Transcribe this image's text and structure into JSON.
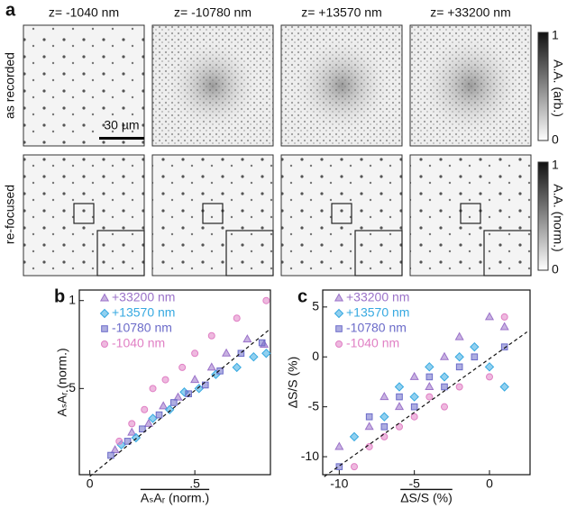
{
  "panel_a": {
    "label": "a",
    "columns": [
      "z= -1040 nm",
      "z= -10780 nm",
      "z= +13570 nm",
      "z= +33200 nm"
    ],
    "rows": [
      "as recorded",
      "re-focused"
    ],
    "scale_bar": "30 µm",
    "colorbars": [
      {
        "max": "1",
        "min": "0",
        "label": "A.A. (arb.)"
      },
      {
        "max": "1",
        "min": "0",
        "label": "A.A. (norm.)"
      }
    ]
  },
  "chart_data": [
    {
      "type": "scatter",
      "label": "b",
      "ylabel": "AₛAᵣ (norm.)",
      "xlabel": "AₛAᵣ (norm.)",
      "xlim": [
        -0.05,
        0.86
      ],
      "ylim": [
        0.01,
        1.06
      ],
      "xticks": [
        0,
        {
          "value": 0.5,
          "label": ".5"
        }
      ],
      "yticks": [
        {
          "value": 0.5,
          "label": ".5"
        },
        1
      ],
      "fit_line": {
        "x": [
          0,
          0.86
        ],
        "y": [
          0,
          0.84
        ]
      },
      "series": [
        {
          "name": "+33200 nm",
          "color": "#9b72c9",
          "marker": "triangle",
          "x": [
            0.12,
            0.2,
            0.28,
            0.35,
            0.42,
            0.5,
            0.58,
            0.65,
            0.75,
            0.83
          ],
          "values": [
            0.15,
            0.25,
            0.3,
            0.4,
            0.45,
            0.55,
            0.62,
            0.7,
            0.78,
            0.75
          ]
        },
        {
          "name": "+13570 nm",
          "color": "#36a9e1",
          "marker": "diamond",
          "x": [
            0.15,
            0.22,
            0.3,
            0.38,
            0.45,
            0.52,
            0.6,
            0.7,
            0.78,
            0.84
          ],
          "values": [
            0.18,
            0.22,
            0.33,
            0.38,
            0.48,
            0.5,
            0.58,
            0.62,
            0.68,
            0.7
          ]
        },
        {
          "name": "-10780 nm",
          "color": "#6b6bc9",
          "marker": "square",
          "x": [
            0.1,
            0.18,
            0.25,
            0.33,
            0.4,
            0.47,
            0.55,
            0.62,
            0.72,
            0.82
          ],
          "values": [
            0.12,
            0.2,
            0.27,
            0.35,
            0.42,
            0.47,
            0.52,
            0.6,
            0.7,
            0.76
          ]
        },
        {
          "name": "-1040 nm",
          "color": "#e07fc4",
          "marker": "circle",
          "x": [
            0.14,
            0.2,
            0.26,
            0.3,
            0.36,
            0.44,
            0.5,
            0.58,
            0.7,
            0.84
          ],
          "values": [
            0.2,
            0.3,
            0.38,
            0.5,
            0.55,
            0.62,
            0.7,
            0.8,
            0.9,
            1.0
          ]
        }
      ]
    },
    {
      "type": "scatter",
      "label": "c",
      "ylabel": "ΔS/S (%)",
      "xlabel": "ΔS/S (%)",
      "xlim": [
        -11.1,
        2.7
      ],
      "ylim": [
        -11.8,
        6.7
      ],
      "xticks": [
        -10,
        -5,
        0
      ],
      "yticks": [
        -10,
        -5,
        0,
        5
      ],
      "fit_line": {
        "x": [
          -11,
          2.5
        ],
        "y": [
          -12,
          2.5
        ]
      },
      "series": [
        {
          "name": "+33200 nm",
          "color": "#9b72c9",
          "marker": "triangle",
          "x": [
            -10,
            -8,
            -7,
            -6,
            -5,
            -4,
            -3,
            -2,
            0,
            1
          ],
          "values": [
            -9,
            -7,
            -4,
            -5,
            -2,
            -3,
            0,
            2,
            4,
            3
          ]
        },
        {
          "name": "+13570 nm",
          "color": "#36a9e1",
          "marker": "diamond",
          "x": [
            -9,
            -7,
            -6,
            -5,
            -4,
            -3,
            -2,
            -1,
            0,
            1
          ],
          "values": [
            -8,
            -6,
            -3,
            -4,
            -1,
            -2,
            0,
            1,
            -1,
            -3
          ]
        },
        {
          "name": "-10780 nm",
          "color": "#6b6bc9",
          "marker": "square",
          "x": [
            -10,
            -8,
            -7,
            -6,
            -5,
            -4,
            -3,
            -2,
            -1,
            1
          ],
          "values": [
            -11,
            -6,
            -7,
            -4,
            -5,
            -2,
            -3,
            -1,
            0,
            1
          ]
        },
        {
          "name": "-1040 nm",
          "color": "#e07fc4",
          "marker": "circle",
          "x": [
            -9,
            -8,
            -7,
            -6,
            -5,
            -4,
            -3,
            -2,
            0,
            1
          ],
          "values": [
            -11,
            -9,
            -8,
            -7,
            -6,
            -4,
            -5,
            -3,
            -2,
            4
          ]
        }
      ]
    }
  ]
}
